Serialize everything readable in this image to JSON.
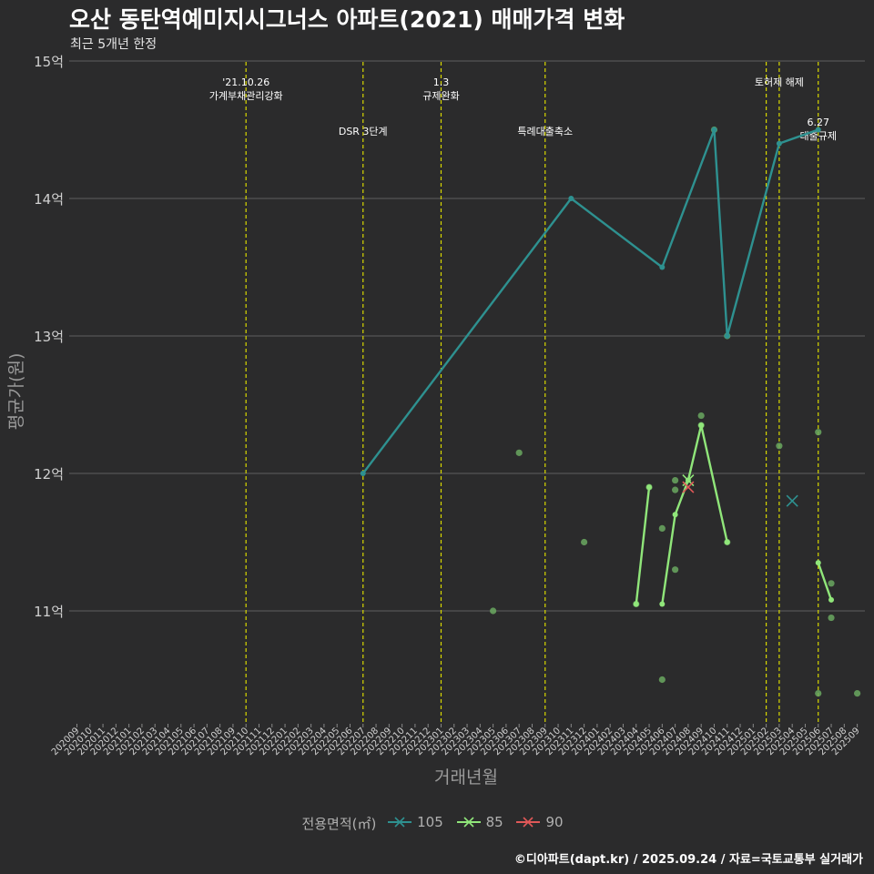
{
  "title": "오산 동탄역예미지시그너스 아파트(2021) 매매가격 변화",
  "subtitle": "최근 5개년 한정",
  "caption": "©디아파트(dapt.kr) / 2025.09.24 / 자료=국토교통부 실거래가",
  "colors": {
    "background": "#2b2b2c",
    "grid": "#5f5f5f",
    "event_line": "#d8d800",
    "s105": "#2e9190",
    "s85": "#90e67a",
    "s90": "#e05858",
    "points": "#6aa860"
  },
  "chart_data": {
    "type": "line",
    "xlabel": "거래년월",
    "ylabel": "평균가(원)",
    "ylim": [
      10.2,
      15.0
    ],
    "y_ticks": [
      {
        "value": 11,
        "label": "11억"
      },
      {
        "value": 12,
        "label": "12억"
      },
      {
        "value": 13,
        "label": "13억"
      },
      {
        "value": 14,
        "label": "14억"
      },
      {
        "value": 15,
        "label": "15억"
      }
    ],
    "categories": [
      "202009",
      "202010",
      "202011",
      "202012",
      "202101",
      "202102",
      "202103",
      "202104",
      "202105",
      "202106",
      "202107",
      "202108",
      "202109",
      "202110",
      "202111",
      "202112",
      "202201",
      "202202",
      "202203",
      "202204",
      "202205",
      "202206",
      "202207",
      "202208",
      "202209",
      "202210",
      "202211",
      "202212",
      "202301",
      "202302",
      "202303",
      "202304",
      "202305",
      "202306",
      "202307",
      "202308",
      "202309",
      "202310",
      "202311",
      "202312",
      "202401",
      "202402",
      "202403",
      "202404",
      "202405",
      "202406",
      "202407",
      "202408",
      "202409",
      "202410",
      "202411",
      "202412",
      "202501",
      "202502",
      "202503",
      "202504",
      "202505",
      "202506",
      "202507",
      "202508",
      "202509"
    ],
    "legend_title": "전용면적(㎡)",
    "series": [
      {
        "name": "105",
        "color": "#2e9190",
        "line": [
          [
            "202207",
            12.0
          ],
          [
            "202311",
            14.0
          ],
          [
            "202406",
            13.5
          ],
          [
            "202410",
            14.5
          ],
          [
            "202411",
            13.0
          ],
          [
            "202503",
            14.4
          ],
          [
            "202506",
            14.5
          ]
        ],
        "markers_x": [
          [
            "202504",
            11.8
          ]
        ]
      },
      {
        "name": "85",
        "color": "#90e67a",
        "lines": [
          [
            [
              "202404",
              11.05
            ],
            [
              "202405",
              11.9
            ]
          ],
          [
            [
              "202406",
              11.05
            ],
            [
              "202407",
              11.7
            ],
            [
              "202408",
              11.95
            ],
            [
              "202409",
              12.35
            ],
            [
              "202411",
              11.5
            ]
          ],
          [
            [
              "202506",
              11.35
            ],
            [
              "202507",
              11.08
            ]
          ]
        ],
        "markers_x": [
          [
            "202408",
            11.95
          ]
        ]
      },
      {
        "name": "90",
        "color": "#e05858",
        "line": [],
        "markers_x": [
          [
            "202408",
            11.9
          ]
        ]
      }
    ],
    "points": [
      [
        "202305",
        11.0
      ],
      [
        "202307",
        12.15
      ],
      [
        "202312",
        11.5
      ],
      [
        "202404",
        11.05
      ],
      [
        "202405",
        11.9
      ],
      [
        "202406",
        11.6
      ],
      [
        "202406",
        10.5
      ],
      [
        "202407",
        11.95
      ],
      [
        "202407",
        11.88
      ],
      [
        "202407",
        11.3
      ],
      [
        "202409",
        12.42
      ],
      [
        "202409",
        12.35
      ],
      [
        "202411",
        11.5
      ],
      [
        "202503",
        12.2
      ],
      [
        "202506",
        12.3
      ],
      [
        "202506",
        10.4
      ],
      [
        "202507",
        11.2
      ],
      [
        "202507",
        10.95
      ],
      [
        "202509",
        10.4
      ],
      [
        "202410",
        14.5
      ],
      [
        "202411",
        13.0
      ]
    ],
    "events": [
      {
        "x": "202110",
        "lines": [
          "'21.10.26",
          "가계부채관리강화"
        ],
        "level": 1
      },
      {
        "x": "202207",
        "lines": [
          "DSR 3단계"
        ],
        "level": 2
      },
      {
        "x": "202301",
        "lines": [
          "1.3",
          "규제완화"
        ],
        "level": 1
      },
      {
        "x": "202309",
        "lines": [
          "특례대출축소"
        ],
        "level": 2
      },
      {
        "x": "202502",
        "lines": [],
        "level": 0
      },
      {
        "x": "202503",
        "lines": [
          "토허제 해제"
        ],
        "level": 1
      },
      {
        "x": "202506",
        "lines": [
          "6.27",
          "대출규제"
        ],
        "level": 3
      }
    ]
  }
}
